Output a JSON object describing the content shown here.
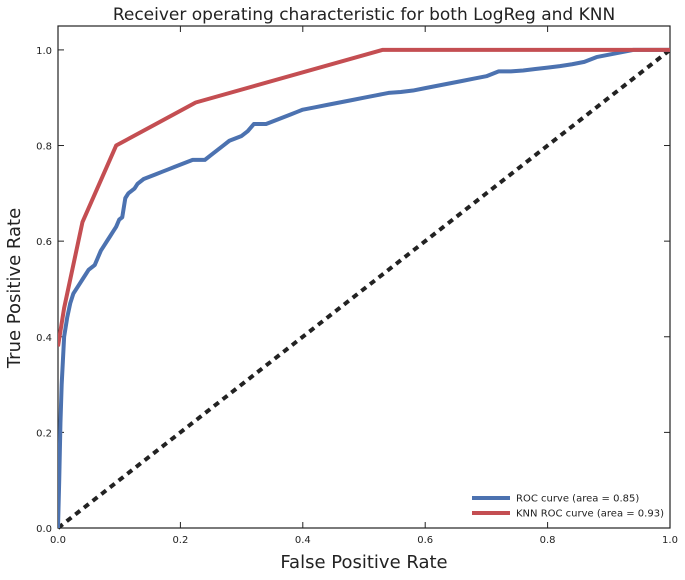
{
  "chart_data": {
    "type": "line",
    "title": "Receiver operating characteristic for both LogReg and KNN",
    "xlabel": "False Positive Rate",
    "ylabel": "True Positive Rate",
    "xlim": [
      0.0,
      1.0
    ],
    "ylim": [
      0.0,
      1.05
    ],
    "xticks": [
      "0.0",
      "0.2",
      "0.4",
      "0.6",
      "0.8",
      "1.0"
    ],
    "yticks": [
      "0.0",
      "0.2",
      "0.4",
      "0.6",
      "0.8",
      "1.0"
    ],
    "grid": false,
    "legend_position": "lower-right",
    "series": [
      {
        "name": "ROC curve (area = 0.85)",
        "color": "#4c72b0",
        "points": [
          [
            0.0,
            0.0
          ],
          [
            0.002,
            0.1
          ],
          [
            0.004,
            0.22
          ],
          [
            0.006,
            0.3
          ],
          [
            0.008,
            0.35
          ],
          [
            0.01,
            0.4
          ],
          [
            0.015,
            0.44
          ],
          [
            0.02,
            0.47
          ],
          [
            0.025,
            0.49
          ],
          [
            0.03,
            0.5
          ],
          [
            0.035,
            0.51
          ],
          [
            0.04,
            0.52
          ],
          [
            0.045,
            0.53
          ],
          [
            0.05,
            0.54
          ],
          [
            0.055,
            0.545
          ],
          [
            0.06,
            0.55
          ],
          [
            0.065,
            0.565
          ],
          [
            0.07,
            0.58
          ],
          [
            0.075,
            0.59
          ],
          [
            0.08,
            0.6
          ],
          [
            0.085,
            0.61
          ],
          [
            0.09,
            0.62
          ],
          [
            0.095,
            0.63
          ],
          [
            0.1,
            0.645
          ],
          [
            0.105,
            0.65
          ],
          [
            0.11,
            0.69
          ],
          [
            0.115,
            0.7
          ],
          [
            0.12,
            0.705
          ],
          [
            0.125,
            0.71
          ],
          [
            0.13,
            0.72
          ],
          [
            0.14,
            0.73
          ],
          [
            0.15,
            0.735
          ],
          [
            0.16,
            0.74
          ],
          [
            0.17,
            0.745
          ],
          [
            0.18,
            0.75
          ],
          [
            0.19,
            0.755
          ],
          [
            0.2,
            0.76
          ],
          [
            0.21,
            0.765
          ],
          [
            0.22,
            0.77
          ],
          [
            0.24,
            0.77
          ],
          [
            0.25,
            0.78
          ],
          [
            0.26,
            0.79
          ],
          [
            0.27,
            0.8
          ],
          [
            0.28,
            0.81
          ],
          [
            0.29,
            0.815
          ],
          [
            0.3,
            0.82
          ],
          [
            0.31,
            0.83
          ],
          [
            0.32,
            0.845
          ],
          [
            0.34,
            0.845
          ],
          [
            0.35,
            0.85
          ],
          [
            0.36,
            0.855
          ],
          [
            0.37,
            0.86
          ],
          [
            0.38,
            0.865
          ],
          [
            0.39,
            0.87
          ],
          [
            0.4,
            0.875
          ],
          [
            0.42,
            0.88
          ],
          [
            0.44,
            0.885
          ],
          [
            0.46,
            0.89
          ],
          [
            0.48,
            0.895
          ],
          [
            0.5,
            0.9
          ],
          [
            0.52,
            0.905
          ],
          [
            0.54,
            0.91
          ],
          [
            0.56,
            0.912
          ],
          [
            0.58,
            0.915
          ],
          [
            0.6,
            0.92
          ],
          [
            0.62,
            0.925
          ],
          [
            0.64,
            0.93
          ],
          [
            0.66,
            0.935
          ],
          [
            0.68,
            0.94
          ],
          [
            0.7,
            0.945
          ],
          [
            0.72,
            0.955
          ],
          [
            0.74,
            0.955
          ],
          [
            0.76,
            0.957
          ],
          [
            0.78,
            0.96
          ],
          [
            0.8,
            0.963
          ],
          [
            0.82,
            0.966
          ],
          [
            0.84,
            0.97
          ],
          [
            0.86,
            0.975
          ],
          [
            0.88,
            0.985
          ],
          [
            0.9,
            0.99
          ],
          [
            0.92,
            0.995
          ],
          [
            0.94,
            1.0
          ],
          [
            1.0,
            1.0
          ]
        ]
      },
      {
        "name": "KNN ROC curve (area = 0.93)",
        "color": "#c44e52",
        "points": [
          [
            0.0,
            0.38
          ],
          [
            0.01,
            0.46
          ],
          [
            0.04,
            0.64
          ],
          [
            0.095,
            0.8
          ],
          [
            0.225,
            0.89
          ],
          [
            0.53,
            1.0
          ],
          [
            1.0,
            1.0
          ]
        ]
      },
      {
        "name": "",
        "color": "#222222",
        "dashed": true,
        "points": [
          [
            0.0,
            0.0
          ],
          [
            1.0,
            1.0
          ]
        ]
      }
    ]
  }
}
